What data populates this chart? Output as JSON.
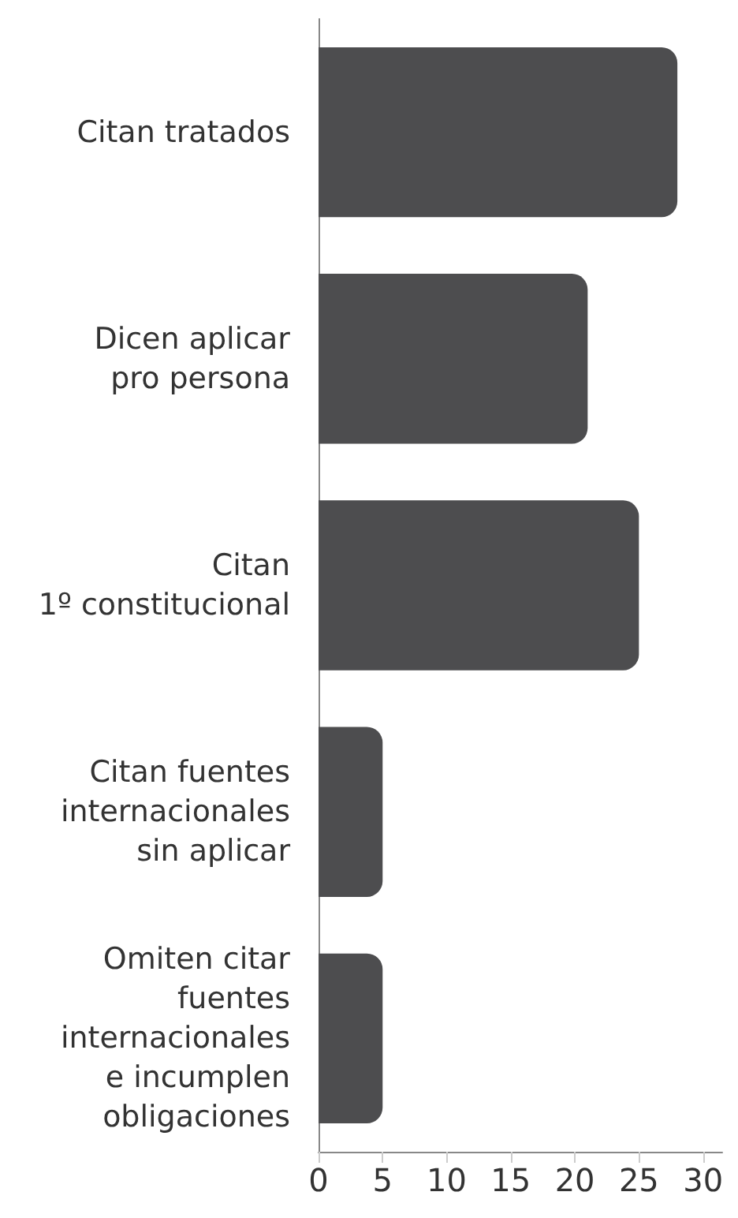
{
  "chart_data": {
    "type": "bar",
    "orientation": "horizontal",
    "categories": [
      "Citan tratados",
      "Dicen aplicar\npro persona",
      "Citan\n1º constitucional",
      "Citan fuentes\ninternacionales\nsin aplicar",
      "Omiten citar\nfuentes\ninternacionales\ne incumplen\nobligaciones"
    ],
    "values": [
      28,
      21,
      25,
      5,
      5
    ],
    "color": "#4d4d4f",
    "xlim": [
      0,
      31.5
    ],
    "xticks": [
      0,
      5,
      10,
      15,
      20,
      25,
      30
    ],
    "grid": false
  }
}
